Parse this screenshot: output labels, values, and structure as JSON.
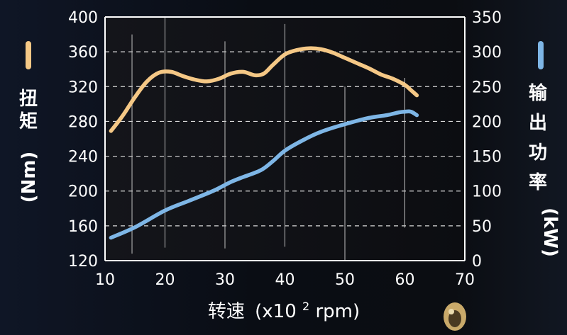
{
  "chart_data": {
    "type": "line",
    "x_label": "转速",
    "x_unit_prefix": "(x10",
    "x_unit_sup": "2",
    "x_unit_suffix": "rpm)",
    "xlim": [
      10,
      70
    ],
    "x_ticks": [
      "10",
      "20",
      "30",
      "40",
      "50",
      "60",
      "70"
    ],
    "y_left": {
      "label_chars": [
        "扭",
        "矩"
      ],
      "unit": "(Nm)",
      "lim": [
        120,
        400
      ],
      "ticks": [
        "400",
        "360",
        "320",
        "280",
        "240",
        "200",
        "160",
        "120"
      ]
    },
    "y_right": {
      "label_chars": [
        "输",
        "出",
        "功",
        "率"
      ],
      "unit": "(kW)",
      "lim": [
        0,
        350
      ],
      "ticks": [
        "350",
        "300",
        "250",
        "200",
        "150",
        "100",
        "50",
        "0"
      ]
    },
    "grid": {
      "horizontal": "dashed",
      "vertical": "sparse"
    },
    "colors": {
      "torque": "#f5c886",
      "power": "#7eb6e6",
      "axis": "#ffffff",
      "background": "#0b0e15"
    },
    "series": [
      {
        "axis": "left",
        "x": [
          11,
          13,
          15,
          17,
          19,
          21,
          23,
          25,
          27,
          29,
          31,
          33,
          35,
          36.5,
          38,
          40,
          42,
          44,
          46,
          48,
          50,
          52,
          54,
          56,
          58,
          60,
          61,
          62
        ],
        "y": [
          269,
          287,
          308,
          326,
          336,
          337,
          332,
          328,
          326,
          329,
          335,
          337,
          333,
          335,
          345,
          357,
          362,
          364,
          363,
          359,
          353,
          347,
          341,
          334,
          329,
          322,
          316,
          310
        ]
      },
      {
        "axis": "right",
        "x": [
          11,
          15,
          20,
          24,
          28,
          31,
          33,
          36,
          38,
          40,
          43,
          46,
          50,
          54,
          57,
          59,
          60,
          61,
          62
        ],
        "y": [
          33,
          48,
          72,
          86,
          100,
          113,
          120,
          130,
          143,
          158,
          173,
          185,
          196,
          205,
          209,
          213,
          214,
          214,
          209
        ]
      }
    ]
  }
}
